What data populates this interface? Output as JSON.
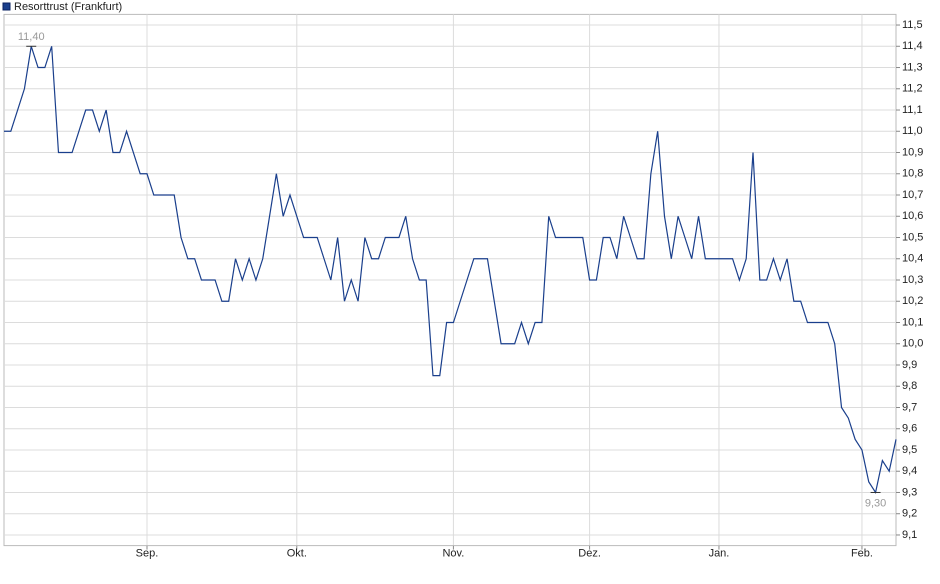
{
  "chart_data": {
    "type": "line",
    "title": "Resorttrust (Frankfurt)",
    "color": "#1a3f8c",
    "grid": true,
    "values": [
      11.0,
      11.0,
      11.1,
      11.2,
      11.4,
      11.3,
      11.3,
      11.4,
      10.9,
      10.9,
      10.9,
      11.0,
      11.1,
      11.1,
      11.0,
      11.1,
      10.9,
      10.9,
      11.0,
      10.9,
      10.8,
      10.8,
      10.7,
      10.7,
      10.7,
      10.7,
      10.5,
      10.4,
      10.4,
      10.3,
      10.3,
      10.3,
      10.2,
      10.2,
      10.4,
      10.3,
      10.4,
      10.3,
      10.4,
      10.6,
      10.8,
      10.6,
      10.7,
      10.6,
      10.5,
      10.5,
      10.5,
      10.4,
      10.3,
      10.5,
      10.2,
      10.3,
      10.2,
      10.5,
      10.4,
      10.4,
      10.5,
      10.5,
      10.5,
      10.6,
      10.4,
      10.3,
      10.3,
      9.85,
      9.85,
      10.1,
      10.1,
      10.2,
      10.3,
      10.4,
      10.4,
      10.4,
      10.2,
      10.0,
      10.0,
      10.0,
      10.1,
      10.0,
      10.1,
      10.1,
      10.6,
      10.5,
      10.5,
      10.5,
      10.5,
      10.5,
      10.3,
      10.3,
      10.5,
      10.5,
      10.4,
      10.6,
      10.5,
      10.4,
      10.4,
      10.8,
      11.0,
      10.6,
      10.4,
      10.6,
      10.5,
      10.4,
      10.6,
      10.4,
      10.4,
      10.4,
      10.4,
      10.4,
      10.3,
      10.4,
      10.9,
      10.3,
      10.3,
      10.4,
      10.3,
      10.4,
      10.2,
      10.2,
      10.1,
      10.1,
      10.1,
      10.1,
      10.0,
      9.7,
      9.65,
      9.55,
      9.5,
      9.35,
      9.3,
      9.45,
      9.4,
      9.55
    ],
    "xlim": [
      0,
      131
    ],
    "xticks": [
      {
        "value": 21,
        "label": "Sep."
      },
      {
        "value": 43,
        "label": "Okt."
      },
      {
        "value": 66,
        "label": "Nov."
      },
      {
        "value": 86,
        "label": "Dez."
      },
      {
        "value": 105,
        "label": "Jan."
      },
      {
        "value": 126,
        "label": "Feb."
      }
    ],
    "ylim": [
      9.05,
      11.55
    ],
    "yticks": [
      {
        "value": 9.1,
        "label": "9,1"
      },
      {
        "value": 9.2,
        "label": "9,2"
      },
      {
        "value": 9.3,
        "label": "9,3"
      },
      {
        "value": 9.4,
        "label": "9,4"
      },
      {
        "value": 9.5,
        "label": "9,5"
      },
      {
        "value": 9.6,
        "label": "9,6"
      },
      {
        "value": 9.7,
        "label": "9,7"
      },
      {
        "value": 9.8,
        "label": "9,8"
      },
      {
        "value": 9.9,
        "label": "9,9"
      },
      {
        "value": 10.0,
        "label": "10,0"
      },
      {
        "value": 10.1,
        "label": "10,1"
      },
      {
        "value": 10.2,
        "label": "10,2"
      },
      {
        "value": 10.3,
        "label": "10,3"
      },
      {
        "value": 10.4,
        "label": "10,4"
      },
      {
        "value": 10.5,
        "label": "10,5"
      },
      {
        "value": 10.6,
        "label": "10,6"
      },
      {
        "value": 10.7,
        "label": "10,7"
      },
      {
        "value": 10.8,
        "label": "10,8"
      },
      {
        "value": 10.9,
        "label": "10,9"
      },
      {
        "value": 11.0,
        "label": "11,0"
      },
      {
        "value": 11.1,
        "label": "11,1"
      },
      {
        "value": 11.2,
        "label": "11,2"
      },
      {
        "value": 11.3,
        "label": "11,3"
      },
      {
        "value": 11.4,
        "label": "11,4"
      },
      {
        "value": 11.5,
        "label": "11,5"
      }
    ],
    "annotations": [
      {
        "index": 4,
        "value": 11.4,
        "label": "11,40",
        "position": "above"
      },
      {
        "index": 128,
        "value": 9.3,
        "label": "9,30",
        "position": "below"
      }
    ]
  }
}
